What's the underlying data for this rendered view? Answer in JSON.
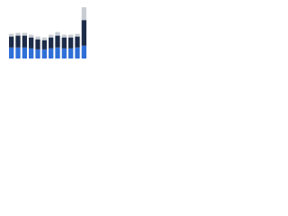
{
  "chart_data": {
    "type": "stacked-bar",
    "categories": [
      null,
      null,
      null,
      null,
      null,
      null,
      null,
      null,
      null,
      null,
      null,
      null
    ],
    "series": [
      {
        "color": "#2e6fd8",
        "values": [
          12,
          12,
          12,
          11,
          10,
          10,
          11,
          12,
          11,
          11,
          12,
          14
        ]
      },
      {
        "color": "#1c2b47",
        "values": [
          12,
          13,
          13,
          12,
          11,
          10,
          12,
          13,
          12,
          12,
          12,
          28
        ]
      },
      {
        "color": "#c9cdd3",
        "values": [
          3,
          3,
          3,
          3,
          3,
          3,
          3,
          4,
          3,
          3,
          3,
          14
        ]
      }
    ],
    "ylim": [
      0,
      60
    ]
  }
}
